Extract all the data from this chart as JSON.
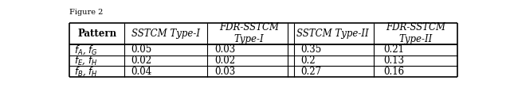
{
  "headers": [
    "Pattern",
    "SSTCM Type-I",
    "FDR-SSTCM\nType-I",
    "SSTCM Type-II",
    "FDR-SSTCM\nType-II"
  ],
  "rows": [
    [
      "f_A, f_G",
      "0.05",
      "0.03",
      "0.35",
      "0.21"
    ],
    [
      "f_E, f_H",
      "0.02",
      "0.02",
      "0.2",
      "0.13"
    ],
    [
      "f_B, f_H",
      "0.04",
      "0.03",
      "0.27",
      "0.16"
    ]
  ],
  "background_color": "#ffffff",
  "border_color": "#000000",
  "header_fontsize": 8.5,
  "cell_fontsize": 8.5,
  "double_line_after_col": 2,
  "figure_label": "Figure 2"
}
